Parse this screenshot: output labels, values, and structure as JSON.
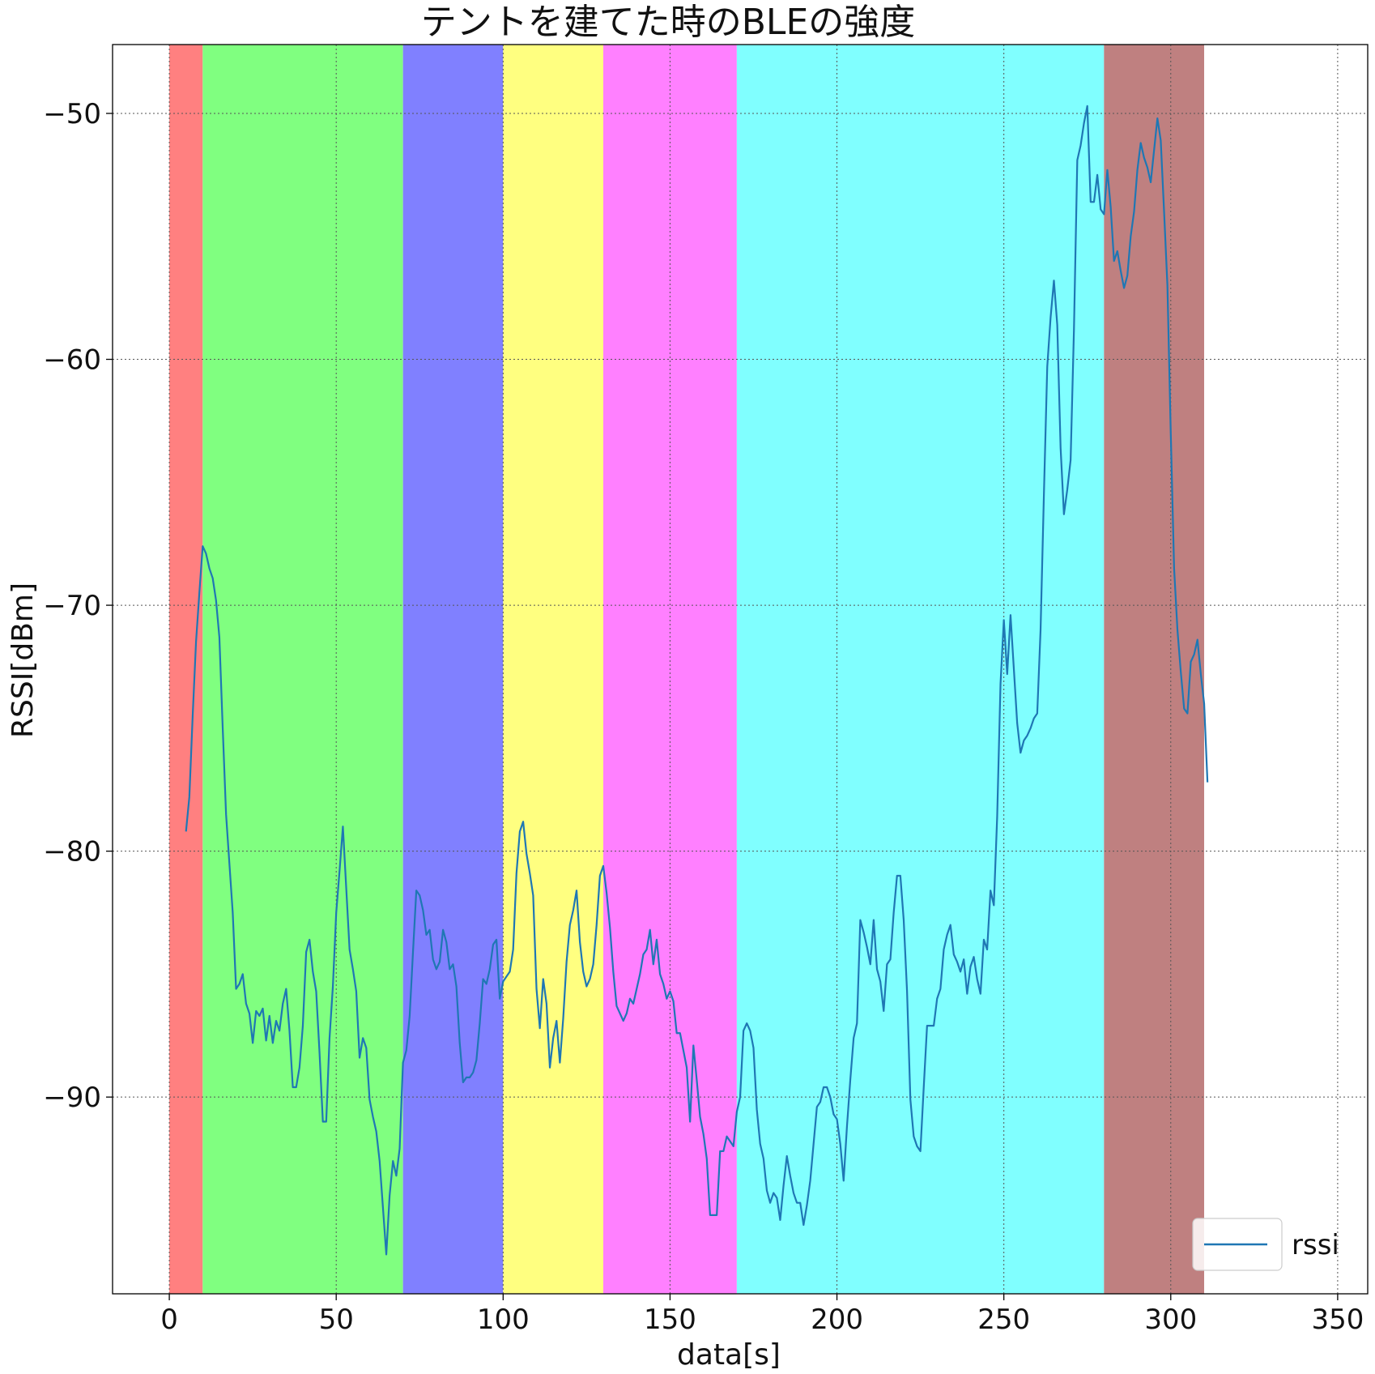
{
  "chart_data": {
    "type": "line",
    "title": "テントを建てた時のBLEの強度",
    "xlabel": "data[s]",
    "ylabel": "RSSI[dBm]",
    "xlim": [
      -17,
      359
    ],
    "ylim": [
      -98,
      -47.2
    ],
    "xticks": [
      0,
      50,
      100,
      150,
      200,
      250,
      300,
      350
    ],
    "yticks": [
      -50,
      -60,
      -70,
      -80,
      -90
    ],
    "tick_labels": {
      "x": [
        "0",
        "50",
        "100",
        "150",
        "200",
        "250",
        "300",
        "350"
      ],
      "y": [
        "−50",
        "−60",
        "−70",
        "−80",
        "−90"
      ]
    },
    "grid": true,
    "legend": {
      "location": "lower-right",
      "entries": [
        "rssi"
      ]
    },
    "phases": [
      {
        "start": 0,
        "end": 10,
        "color": "#ff8080"
      },
      {
        "start": 10,
        "end": 70,
        "color": "#80ff80"
      },
      {
        "start": 70,
        "end": 100,
        "color": "#8080ff"
      },
      {
        "start": 100,
        "end": 130,
        "color": "#ffff80"
      },
      {
        "start": 130,
        "end": 170,
        "color": "#ff80ff"
      },
      {
        "start": 170,
        "end": 280,
        "color": "#80ffff"
      },
      {
        "start": 280,
        "end": 310,
        "color": "#bf8080"
      }
    ],
    "series": [
      {
        "name": "rssi",
        "color": "#1f77b4",
        "points": [
          [
            5,
            -79.2
          ],
          [
            6,
            -77.8
          ],
          [
            7,
            -74.5
          ],
          [
            8,
            -71.5
          ],
          [
            9,
            -69.5
          ],
          [
            10,
            -67.6
          ],
          [
            11,
            -67.9
          ],
          [
            12,
            -68.5
          ],
          [
            13,
            -68.9
          ],
          [
            14,
            -69.8
          ],
          [
            15,
            -71.3
          ],
          [
            16,
            -75
          ],
          [
            17,
            -78.5
          ],
          [
            18,
            -80.5
          ],
          [
            19,
            -82.5
          ],
          [
            20,
            -85.6
          ],
          [
            21,
            -85.4
          ],
          [
            22,
            -85.0
          ],
          [
            23,
            -86.2
          ],
          [
            24,
            -86.6
          ],
          [
            25,
            -87.8
          ],
          [
            26,
            -86.5
          ],
          [
            27,
            -86.7
          ],
          [
            28,
            -86.4
          ],
          [
            29,
            -87.7
          ],
          [
            30,
            -86.7
          ],
          [
            31,
            -87.8
          ],
          [
            32,
            -86.9
          ],
          [
            33,
            -87.3
          ],
          [
            34,
            -86.2
          ],
          [
            35,
            -85.6
          ],
          [
            36,
            -87.3
          ],
          [
            37,
            -89.6
          ],
          [
            38,
            -89.6
          ],
          [
            39,
            -88.8
          ],
          [
            40,
            -87.1
          ],
          [
            41,
            -84.1
          ],
          [
            42,
            -83.6
          ],
          [
            43,
            -84.9
          ],
          [
            44,
            -85.7
          ],
          [
            45,
            -88.2
          ],
          [
            46,
            -91.0
          ],
          [
            47,
            -91.0
          ],
          [
            48,
            -87.6
          ],
          [
            49,
            -85.5
          ],
          [
            50,
            -82.5
          ],
          [
            51,
            -80.8
          ],
          [
            52,
            -79.0
          ],
          [
            53,
            -81.5
          ],
          [
            54,
            -84.0
          ],
          [
            55,
            -84.8
          ],
          [
            56,
            -85.7
          ],
          [
            57,
            -88.4
          ],
          [
            58,
            -87.6
          ],
          [
            59,
            -88.0
          ],
          [
            60,
            -90.1
          ],
          [
            61,
            -90.8
          ],
          [
            62,
            -91.4
          ],
          [
            63,
            -92.6
          ],
          [
            64,
            -94.5
          ],
          [
            65,
            -96.4
          ],
          [
            66,
            -94.0
          ],
          [
            67,
            -92.6
          ],
          [
            68,
            -93.2
          ],
          [
            69,
            -92.1
          ],
          [
            70,
            -88.6
          ],
          [
            71,
            -88.1
          ],
          [
            72,
            -86.7
          ],
          [
            73,
            -84.1
          ],
          [
            74,
            -81.6
          ],
          [
            75,
            -81.8
          ],
          [
            76,
            -82.4
          ],
          [
            77,
            -83.4
          ],
          [
            78,
            -83.2
          ],
          [
            79,
            -84.4
          ],
          [
            80,
            -84.8
          ],
          [
            81,
            -84.5
          ],
          [
            82,
            -83.2
          ],
          [
            83,
            -83.7
          ],
          [
            84,
            -84.8
          ],
          [
            85,
            -84.6
          ],
          [
            86,
            -85.5
          ],
          [
            87,
            -87.8
          ],
          [
            88,
            -89.4
          ],
          [
            89,
            -89.2
          ],
          [
            90,
            -89.2
          ],
          [
            91,
            -89.0
          ],
          [
            92,
            -88.5
          ],
          [
            93,
            -87.0
          ],
          [
            94,
            -85.2
          ],
          [
            95,
            -85.4
          ],
          [
            96,
            -84.8
          ],
          [
            97,
            -83.8
          ],
          [
            98,
            -83.6
          ],
          [
            99,
            -86.0
          ],
          [
            100,
            -85.3
          ],
          [
            101,
            -85.1
          ],
          [
            102,
            -84.9
          ],
          [
            103,
            -84.0
          ],
          [
            104,
            -80.9
          ],
          [
            105,
            -79.2
          ],
          [
            106,
            -78.8
          ],
          [
            107,
            -80.1
          ],
          [
            108,
            -80.9
          ],
          [
            109,
            -81.8
          ],
          [
            110,
            -85.6
          ],
          [
            111,
            -87.2
          ],
          [
            112,
            -85.2
          ],
          [
            113,
            -86.2
          ],
          [
            114,
            -88.8
          ],
          [
            115,
            -87.6
          ],
          [
            116,
            -86.9
          ],
          [
            117,
            -88.6
          ],
          [
            118,
            -86.8
          ],
          [
            119,
            -84.5
          ],
          [
            120,
            -83.0
          ],
          [
            121,
            -82.4
          ],
          [
            122,
            -81.6
          ],
          [
            123,
            -83.7
          ],
          [
            124,
            -84.9
          ],
          [
            125,
            -85.5
          ],
          [
            126,
            -85.2
          ],
          [
            127,
            -84.6
          ],
          [
            128,
            -83.0
          ],
          [
            129,
            -81.0
          ],
          [
            130,
            -80.6
          ],
          [
            131,
            -81.7
          ],
          [
            132,
            -83.1
          ],
          [
            133,
            -84.9
          ],
          [
            134,
            -86.3
          ],
          [
            135,
            -86.6
          ],
          [
            136,
            -86.9
          ],
          [
            137,
            -86.6
          ],
          [
            138,
            -86.0
          ],
          [
            139,
            -86.2
          ],
          [
            140,
            -85.6
          ],
          [
            141,
            -85.0
          ],
          [
            142,
            -84.2
          ],
          [
            143,
            -84.0
          ],
          [
            144,
            -83.2
          ],
          [
            145,
            -84.6
          ],
          [
            146,
            -83.6
          ],
          [
            147,
            -85.0
          ],
          [
            148,
            -85.4
          ],
          [
            149,
            -86.0
          ],
          [
            150,
            -85.7
          ],
          [
            151,
            -86.1
          ],
          [
            152,
            -87.4
          ],
          [
            153,
            -87.4
          ],
          [
            154,
            -88.1
          ],
          [
            155,
            -88.8
          ],
          [
            156,
            -91.0
          ],
          [
            157,
            -87.9
          ],
          [
            158,
            -89.3
          ],
          [
            159,
            -90.8
          ],
          [
            160,
            -91.5
          ],
          [
            161,
            -92.5
          ],
          [
            162,
            -94.8
          ],
          [
            163,
            -94.8
          ],
          [
            164,
            -94.8
          ],
          [
            165,
            -92.2
          ],
          [
            166,
            -92.2
          ],
          [
            167,
            -91.6
          ],
          [
            168,
            -91.8
          ],
          [
            169,
            -92.0
          ],
          [
            170,
            -90.6
          ],
          [
            171,
            -90.0
          ],
          [
            172,
            -87.3
          ],
          [
            173,
            -87.0
          ],
          [
            174,
            -87.3
          ],
          [
            175,
            -88.0
          ],
          [
            176,
            -90.5
          ],
          [
            177,
            -91.9
          ],
          [
            178,
            -92.5
          ],
          [
            179,
            -93.8
          ],
          [
            180,
            -94.3
          ],
          [
            181,
            -93.9
          ],
          [
            182,
            -94.1
          ],
          [
            183,
            -95.0
          ],
          [
            184,
            -93.6
          ],
          [
            185,
            -92.4
          ],
          [
            186,
            -93.2
          ],
          [
            187,
            -93.9
          ],
          [
            188,
            -94.3
          ],
          [
            189,
            -94.3
          ],
          [
            190,
            -95.2
          ],
          [
            191,
            -94.4
          ],
          [
            192,
            -93.4
          ],
          [
            193,
            -91.9
          ],
          [
            194,
            -90.4
          ],
          [
            195,
            -90.2
          ],
          [
            196,
            -89.6
          ],
          [
            197,
            -89.6
          ],
          [
            198,
            -90.0
          ],
          [
            199,
            -90.7
          ],
          [
            200,
            -90.9
          ],
          [
            201,
            -91.9
          ],
          [
            202,
            -93.4
          ],
          [
            203,
            -91.2
          ],
          [
            204,
            -89.3
          ],
          [
            205,
            -87.6
          ],
          [
            206,
            -87.0
          ],
          [
            207,
            -82.8
          ],
          [
            208,
            -83.3
          ],
          [
            209,
            -83.9
          ],
          [
            210,
            -84.6
          ],
          [
            211,
            -82.8
          ],
          [
            212,
            -84.8
          ],
          [
            213,
            -85.3
          ],
          [
            214,
            -86.5
          ],
          [
            215,
            -84.6
          ],
          [
            216,
            -84.4
          ],
          [
            217,
            -82.5
          ],
          [
            218,
            -81.0
          ],
          [
            219,
            -81.0
          ],
          [
            220,
            -82.8
          ],
          [
            221,
            -85.7
          ],
          [
            222,
            -90.1
          ],
          [
            223,
            -91.6
          ],
          [
            224,
            -92.0
          ],
          [
            225,
            -92.2
          ],
          [
            226,
            -89.6
          ],
          [
            227,
            -87.1
          ],
          [
            228,
            -87.1
          ],
          [
            229,
            -87.1
          ],
          [
            230,
            -86.0
          ],
          [
            231,
            -85.6
          ],
          [
            232,
            -84.0
          ],
          [
            233,
            -83.4
          ],
          [
            234,
            -83.0
          ],
          [
            235,
            -84.2
          ],
          [
            236,
            -84.5
          ],
          [
            237,
            -84.9
          ],
          [
            238,
            -84.4
          ],
          [
            239,
            -85.8
          ],
          [
            240,
            -84.7
          ],
          [
            241,
            -84.3
          ],
          [
            242,
            -85.2
          ],
          [
            243,
            -85.8
          ],
          [
            244,
            -83.6
          ],
          [
            245,
            -84.0
          ],
          [
            246,
            -81.6
          ],
          [
            247,
            -82.2
          ],
          [
            248,
            -78.6
          ],
          [
            249,
            -73.2
          ],
          [
            250,
            -70.6
          ],
          [
            251,
            -72.8
          ],
          [
            252,
            -70.4
          ],
          [
            253,
            -72.6
          ],
          [
            254,
            -74.8
          ],
          [
            255,
            -76.0
          ],
          [
            256,
            -75.5
          ],
          [
            257,
            -75.3
          ],
          [
            258,
            -75.0
          ],
          [
            259,
            -74.6
          ],
          [
            260,
            -74.4
          ],
          [
            261,
            -71.0
          ],
          [
            262,
            -65.5
          ],
          [
            263,
            -60.3
          ],
          [
            264,
            -58.3
          ],
          [
            265,
            -56.8
          ],
          [
            266,
            -58.6
          ],
          [
            267,
            -63.6
          ],
          [
            268,
            -66.3
          ],
          [
            269,
            -65.3
          ],
          [
            270,
            -64.1
          ],
          [
            271,
            -58.8
          ],
          [
            272,
            -51.9
          ],
          [
            273,
            -51.3
          ],
          [
            274,
            -50.4
          ],
          [
            275,
            -49.7
          ],
          [
            276,
            -53.6
          ],
          [
            277,
            -53.6
          ],
          [
            278,
            -52.5
          ],
          [
            279,
            -53.9
          ],
          [
            280,
            -54.1
          ],
          [
            281,
            -52.3
          ],
          [
            282,
            -53.8
          ],
          [
            283,
            -56.0
          ],
          [
            284,
            -55.6
          ],
          [
            285,
            -56.4
          ],
          [
            286,
            -57.1
          ],
          [
            287,
            -56.6
          ],
          [
            288,
            -55.0
          ],
          [
            289,
            -54.0
          ],
          [
            290,
            -52.3
          ],
          [
            291,
            -51.2
          ],
          [
            292,
            -51.8
          ],
          [
            293,
            -52.2
          ],
          [
            294,
            -52.8
          ],
          [
            295,
            -51.5
          ],
          [
            296,
            -50.2
          ],
          [
            297,
            -51.1
          ],
          [
            298,
            -54.0
          ],
          [
            299,
            -57.0
          ],
          [
            300,
            -63.0
          ],
          [
            301,
            -68.5
          ],
          [
            302,
            -71.0
          ],
          [
            303,
            -72.7
          ],
          [
            304,
            -74.2
          ],
          [
            305,
            -74.4
          ],
          [
            306,
            -72.3
          ],
          [
            307,
            -72.0
          ],
          [
            308,
            -71.4
          ],
          [
            309,
            -72.8
          ],
          [
            310,
            -74.0
          ],
          [
            311,
            -77.2
          ]
        ]
      }
    ]
  }
}
